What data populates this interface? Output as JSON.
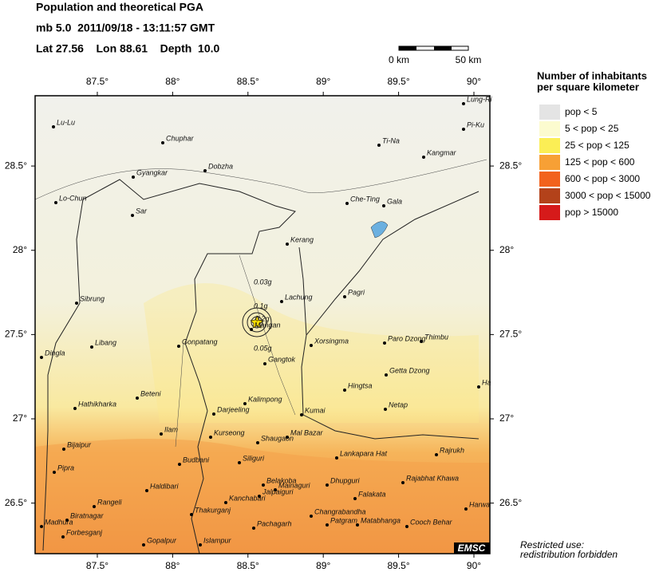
{
  "header": {
    "title": "Population and theoretical PGA",
    "event": "mb 5.0  2011/09/18 - 13:11:57 GMT",
    "location": "Lat 27.56    Lon 88.61    Depth  10.0"
  },
  "scale": {
    "start": "0 km",
    "end": "50 km"
  },
  "map": {
    "xlim": [
      87.087,
      90.106
    ],
    "ylim": [
      26.2,
      28.917
    ],
    "xticks": [
      {
        "value": 87.5,
        "label": "87.5°"
      },
      {
        "value": 88,
        "label": "88°"
      },
      {
        "value": 88.5,
        "label": "88.5°"
      },
      {
        "value": 89,
        "label": "89°"
      },
      {
        "value": 89.5,
        "label": "89.5°"
      },
      {
        "value": 90,
        "label": "90°"
      }
    ],
    "yticks": [
      {
        "value": 26.5,
        "label": "26.5°"
      },
      {
        "value": 27,
        "label": "27°"
      },
      {
        "value": 27.5,
        "label": "27.5°"
      },
      {
        "value": 28,
        "label": "28°"
      },
      {
        "value": 28.5,
        "label": "28.5°"
      }
    ],
    "pga_labels": [
      "0.03g",
      "0.1g",
      "0.2g",
      "0.05g"
    ],
    "cities": [
      "Lu-Lu",
      "Chuphar",
      "Gyangkar",
      "Dobzha",
      "Lo-Chun",
      "Sar",
      "Kerang",
      "Lachung",
      "Mangan",
      "Gangtok",
      "Gonpatang",
      "Libang",
      "Dingla",
      "Sibrung",
      "Hathikharka",
      "Beteni",
      "Darjeeling",
      "Kalimpong",
      "Ilam",
      "Kurseong",
      "Shaugaon",
      "Mal Bazar",
      "Kumai",
      "Bijaipur",
      "Budbani",
      "Siliguri",
      "Pipra",
      "Haldibari",
      "Belakoba",
      "Mainaguri",
      "Dhupguri",
      "Jalpaiguri",
      "Falakata",
      "Rangeli",
      "Biratnagar",
      "Thakurganj",
      "Kanchabari",
      "Changrabandha",
      "Madhura",
      "Forbesganj",
      "Pachagarh",
      "Patgram",
      "Matabhanga",
      "Cooch Behar",
      "Gopalpur",
      "Islampur",
      "Lankapara Hat",
      "Rajrukh",
      "Rajabhat Khawa",
      "Harwa",
      "Paro Dzong",
      "Thimbu",
      "Getta Dzong",
      "Netap",
      "Hingtsa",
      "Xorsingma",
      "Pagri",
      "Che-Ting",
      "Gala",
      "Ti-Na",
      "Kangmar",
      "Pi-Ku",
      "Lung-Ri",
      "Ha"
    ],
    "badge": "EMSC"
  },
  "legend": {
    "title": [
      "Number of inhabitants",
      "per square kilometer"
    ],
    "items": [
      {
        "label": "pop < 5",
        "color": "#e4e4e4"
      },
      {
        "label": "5 < pop < 25",
        "color": "#fcfbcf"
      },
      {
        "label": "25 < pop < 125",
        "color": "#fbee55"
      },
      {
        "label": "125 < pop < 600",
        "color": "#f7a035"
      },
      {
        "label": "600 < pop < 3000",
        "color": "#f2621d"
      },
      {
        "label": "3000 < pop < 15000",
        "color": "#b3421a"
      },
      {
        "label": "pop > 15000",
        "color": "#d61a1a"
      }
    ]
  },
  "footer": [
    "Restricted use:",
    "redistribution forbidden"
  ]
}
